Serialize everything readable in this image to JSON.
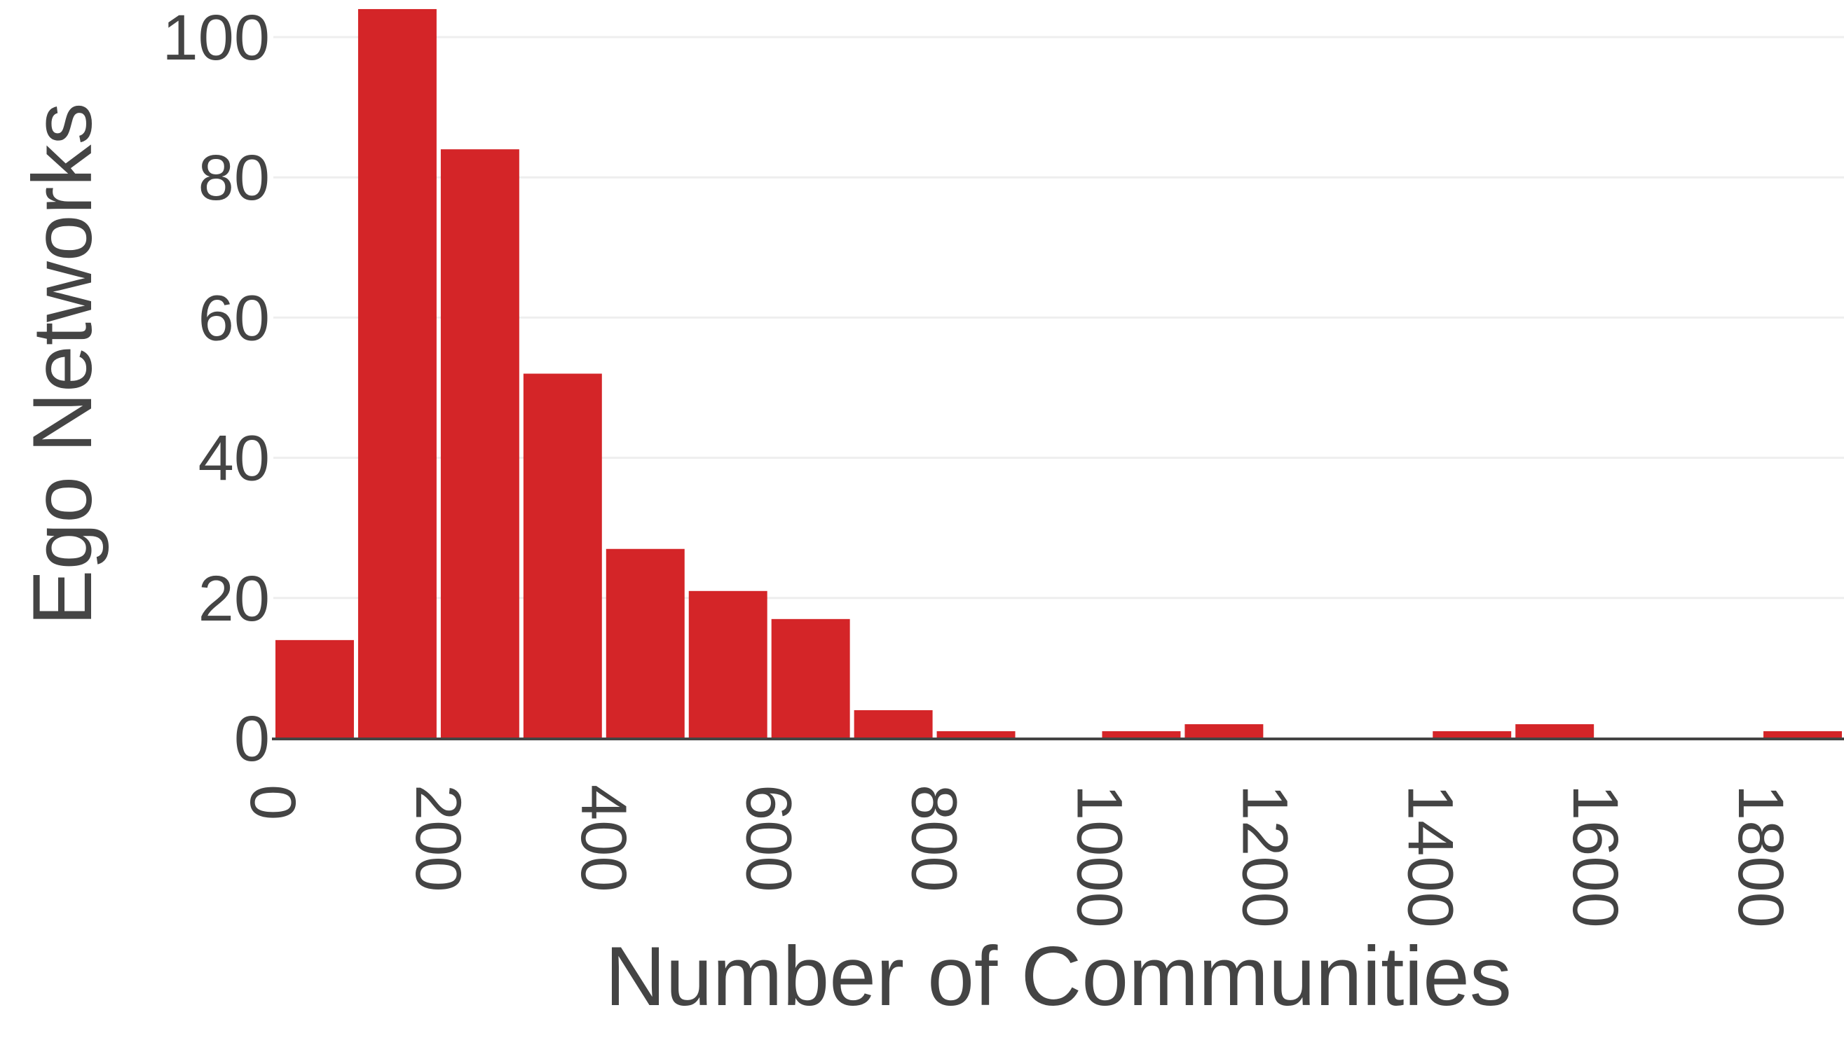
{
  "chart_data": {
    "type": "bar",
    "title": "",
    "xlabel": "Number of Communities",
    "ylabel": "Ego Networks",
    "bin_width": 100,
    "bins": [
      {
        "x0": 0,
        "x1": 100,
        "value": 14
      },
      {
        "x0": 100,
        "x1": 200,
        "value": 104
      },
      {
        "x0": 200,
        "x1": 300,
        "value": 84
      },
      {
        "x0": 300,
        "x1": 400,
        "value": 52
      },
      {
        "x0": 400,
        "x1": 500,
        "value": 27
      },
      {
        "x0": 500,
        "x1": 600,
        "value": 21
      },
      {
        "x0": 600,
        "x1": 700,
        "value": 17
      },
      {
        "x0": 700,
        "x1": 800,
        "value": 4
      },
      {
        "x0": 800,
        "x1": 900,
        "value": 1
      },
      {
        "x0": 900,
        "x1": 1000,
        "value": 0
      },
      {
        "x0": 1000,
        "x1": 1100,
        "value": 1
      },
      {
        "x0": 1100,
        "x1": 1200,
        "value": 2
      },
      {
        "x0": 1200,
        "x1": 1300,
        "value": 0
      },
      {
        "x0": 1300,
        "x1": 1400,
        "value": 0
      },
      {
        "x0": 1400,
        "x1": 1500,
        "value": 1
      },
      {
        "x0": 1500,
        "x1": 1600,
        "value": 2
      },
      {
        "x0": 1600,
        "x1": 1700,
        "value": 0
      },
      {
        "x0": 1700,
        "x1": 1800,
        "value": 0
      },
      {
        "x0": 1800,
        "x1": 1900,
        "value": 1
      }
    ],
    "xlim": [
      0,
      1900
    ],
    "ylim": [
      0,
      104
    ],
    "xticks": [
      0,
      200,
      400,
      600,
      800,
      1000,
      1200,
      1400,
      1600,
      1800
    ],
    "yticks": [
      0,
      20,
      40,
      60,
      80,
      100
    ],
    "grid": "horizontal",
    "legend": "none",
    "bar_color": "#d42528",
    "grid_color": "#eeeeee",
    "text_color": "#444444"
  }
}
